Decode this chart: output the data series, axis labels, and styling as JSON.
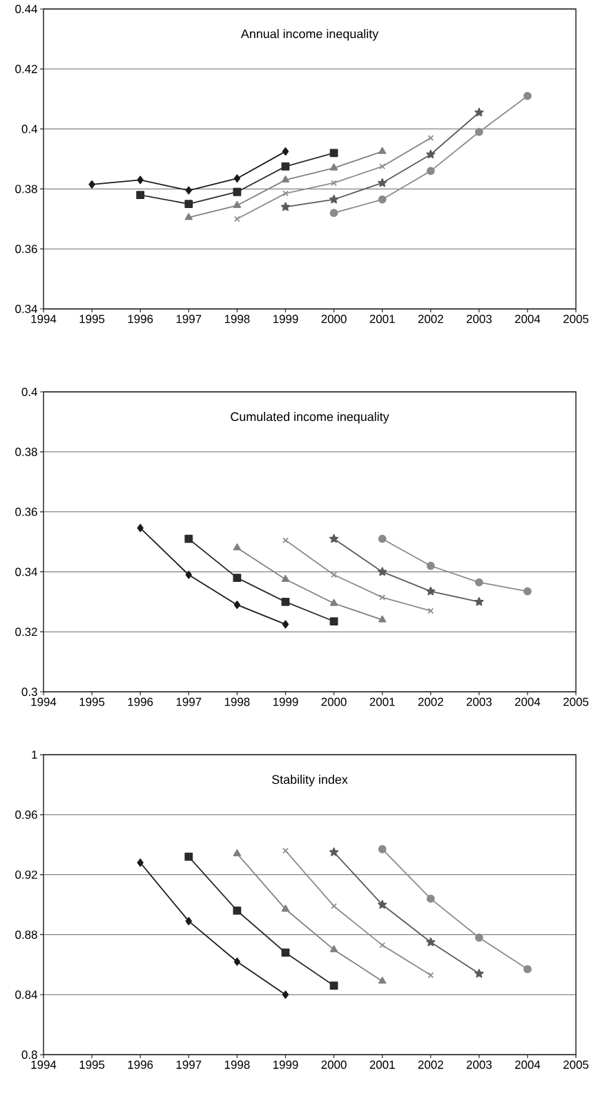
{
  "chart_data": [
    {
      "type": "line",
      "title": "Annual income inequality",
      "xlim": [
        1994,
        2005
      ],
      "xticks": [
        1994,
        1995,
        1996,
        1997,
        1998,
        1999,
        2000,
        2001,
        2002,
        2003,
        2004,
        2005
      ],
      "ylim": [
        0.34,
        0.44
      ],
      "yticks": [
        0.34,
        0.36,
        0.38,
        0.4,
        0.42,
        0.44
      ],
      "grid": "y",
      "series": [
        {
          "color": "#1a1a1a",
          "marker": "diamond",
          "x": [
            1995,
            1996,
            1997,
            1998,
            1999
          ],
          "values": [
            0.3815,
            0.383,
            0.3795,
            0.3835,
            0.3925
          ]
        },
        {
          "color": "#2b2b2b",
          "marker": "square",
          "x": [
            1996,
            1997,
            1998,
            1999,
            2000
          ],
          "values": [
            0.378,
            0.375,
            0.379,
            0.3875,
            0.392
          ]
        },
        {
          "color": "#808080",
          "marker": "triangle",
          "x": [
            1997,
            1998,
            1999,
            2000,
            2001
          ],
          "values": [
            0.3705,
            0.3745,
            0.383,
            0.387,
            0.3925
          ]
        },
        {
          "color": "#8c8c8c",
          "marker": "cross",
          "x": [
            1998,
            1999,
            2000,
            2001,
            2002
          ],
          "values": [
            0.37,
            0.3785,
            0.382,
            0.3875,
            0.397
          ]
        },
        {
          "color": "#5a5a5a",
          "marker": "star",
          "x": [
            1999,
            2000,
            2001,
            2002,
            2003
          ],
          "values": [
            0.374,
            0.3765,
            0.382,
            0.3915,
            0.4055
          ]
        },
        {
          "color": "#8a8a8a",
          "marker": "circle",
          "x": [
            2000,
            2001,
            2002,
            2003,
            2004
          ],
          "values": [
            0.372,
            0.3765,
            0.386,
            0.399,
            0.411
          ]
        }
      ]
    },
    {
      "type": "line",
      "title": "Cumulated income inequality",
      "xlim": [
        1994,
        2005
      ],
      "xticks": [
        1994,
        1995,
        1996,
        1997,
        1998,
        1999,
        2000,
        2001,
        2002,
        2003,
        2004,
        2005
      ],
      "ylim": [
        0.3,
        0.4
      ],
      "yticks": [
        0.3,
        0.32,
        0.34,
        0.36,
        0.38,
        0.4
      ],
      "grid": "y",
      "series": [
        {
          "color": "#1a1a1a",
          "marker": "diamond",
          "x": [
            1996,
            1997,
            1998,
            1999
          ],
          "values": [
            0.3546,
            0.339,
            0.329,
            0.3225
          ]
        },
        {
          "color": "#2b2b2b",
          "marker": "square",
          "x": [
            1997,
            1998,
            1999,
            2000
          ],
          "values": [
            0.351,
            0.338,
            0.33,
            0.3235
          ]
        },
        {
          "color": "#808080",
          "marker": "triangle",
          "x": [
            1998,
            1999,
            2000,
            2001
          ],
          "values": [
            0.348,
            0.3375,
            0.3295,
            0.324
          ]
        },
        {
          "color": "#8c8c8c",
          "marker": "cross",
          "x": [
            1999,
            2000,
            2001,
            2002
          ],
          "values": [
            0.3505,
            0.339,
            0.3315,
            0.327
          ]
        },
        {
          "color": "#5a5a5a",
          "marker": "star",
          "x": [
            2000,
            2001,
            2002,
            2003
          ],
          "values": [
            0.351,
            0.34,
            0.3335,
            0.33
          ]
        },
        {
          "color": "#8a8a8a",
          "marker": "circle",
          "x": [
            2001,
            2002,
            2003,
            2004
          ],
          "values": [
            0.351,
            0.342,
            0.3365,
            0.3335
          ]
        }
      ]
    },
    {
      "type": "line",
      "title": "Stability index",
      "xlim": [
        1994,
        2005
      ],
      "xticks": [
        1994,
        1995,
        1996,
        1997,
        1998,
        1999,
        2000,
        2001,
        2002,
        2003,
        2004,
        2005
      ],
      "ylim": [
        0.8,
        1
      ],
      "yticks": [
        0.8,
        0.84,
        0.88,
        0.92,
        0.96,
        1
      ],
      "grid": "y",
      "series": [
        {
          "color": "#1a1a1a",
          "marker": "diamond",
          "x": [
            1996,
            1997,
            1998,
            1999
          ],
          "values": [
            0.928,
            0.889,
            0.862,
            0.84
          ]
        },
        {
          "color": "#2b2b2b",
          "marker": "square",
          "x": [
            1997,
            1998,
            1999,
            2000
          ],
          "values": [
            0.932,
            0.896,
            0.868,
            0.846
          ]
        },
        {
          "color": "#808080",
          "marker": "triangle",
          "x": [
            1998,
            1999,
            2000,
            2001
          ],
          "values": [
            0.934,
            0.897,
            0.87,
            0.849
          ]
        },
        {
          "color": "#8c8c8c",
          "marker": "cross",
          "x": [
            1999,
            2000,
            2001,
            2002
          ],
          "values": [
            0.936,
            0.899,
            0.873,
            0.853
          ]
        },
        {
          "color": "#5a5a5a",
          "marker": "star",
          "x": [
            2000,
            2001,
            2002,
            2003
          ],
          "values": [
            0.935,
            0.9,
            0.875,
            0.854
          ]
        },
        {
          "color": "#8a8a8a",
          "marker": "circle",
          "x": [
            2001,
            2002,
            2003,
            2004
          ],
          "values": [
            0.937,
            0.904,
            0.878,
            0.857
          ]
        }
      ]
    }
  ]
}
